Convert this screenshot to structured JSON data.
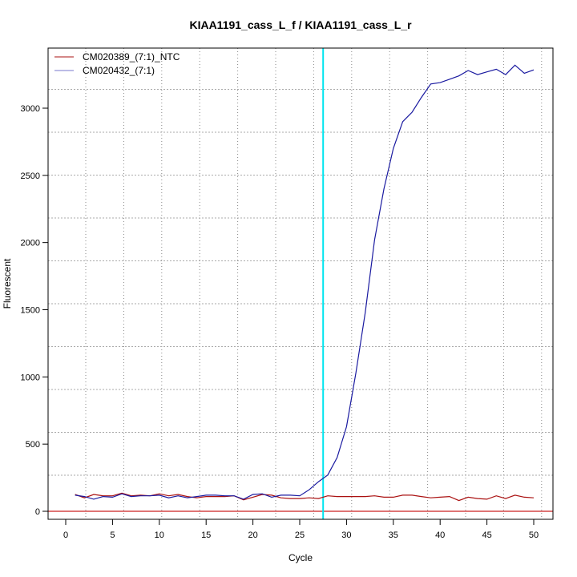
{
  "chart_data": {
    "type": "line",
    "title": "KIAA1191_cass_L_f / KIAA1191_cass_L_r",
    "xlabel": "Cycle",
    "ylabel": "Fluorescent",
    "xlim": [
      -2,
      52
    ],
    "ylim": [
      -60,
      3440
    ],
    "x_ticks": [
      0,
      5,
      10,
      15,
      20,
      25,
      30,
      35,
      40,
      45,
      50
    ],
    "y_ticks": [
      0,
      500,
      1000,
      1500,
      2000,
      2500,
      3000
    ],
    "grid": true,
    "legend_position": "top-left",
    "threshold_cycle": 27.5,
    "threshold_color": "#00e5ee",
    "baseline_value": 0,
    "baseline_color": "#cc2222",
    "x": [
      1,
      2,
      3,
      4,
      5,
      6,
      7,
      8,
      9,
      10,
      11,
      12,
      13,
      14,
      15,
      16,
      17,
      18,
      19,
      20,
      21,
      22,
      23,
      24,
      25,
      26,
      27,
      28,
      29,
      30,
      31,
      32,
      33,
      34,
      35,
      36,
      37,
      38,
      39,
      40,
      41,
      42,
      43,
      44,
      45,
      46,
      47,
      48,
      49,
      50
    ],
    "series": [
      {
        "name": "CM020389_(7:1)_NTC",
        "color": "#aa1111",
        "values": [
          125,
          100,
          125,
          115,
          115,
          135,
          115,
          120,
          115,
          130,
          115,
          125,
          110,
          100,
          110,
          110,
          110,
          115,
          85,
          105,
          125,
          120,
          100,
          95,
          95,
          100,
          95,
          115,
          110,
          110,
          110,
          110,
          115,
          105,
          105,
          120,
          120,
          110,
          100,
          105,
          110,
          80,
          105,
          95,
          90,
          115,
          95,
          120,
          105,
          100
        ]
      },
      {
        "name": "CM020432_(7:1)",
        "color": "#1a1aa0",
        "values": [
          120,
          110,
          90,
          110,
          105,
          130,
          110,
          115,
          115,
          120,
          100,
          115,
          100,
          110,
          120,
          120,
          115,
          115,
          90,
          125,
          130,
          105,
          120,
          120,
          115,
          160,
          220,
          270,
          400,
          630,
          1030,
          1480,
          2020,
          2400,
          2700,
          2900,
          2970,
          3080,
          3180,
          3190,
          3215,
          3240,
          3280,
          3250,
          3270,
          3290,
          3250,
          3320,
          3260,
          3285
        ]
      }
    ]
  }
}
